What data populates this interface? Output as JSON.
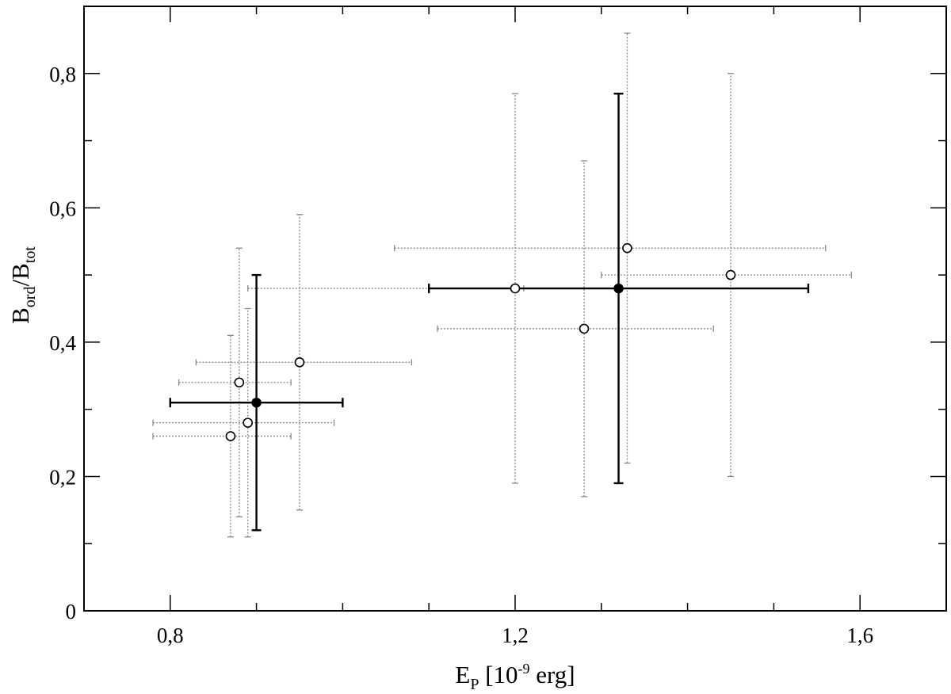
{
  "chart_data": {
    "type": "scatter",
    "title": "",
    "xlabel": {
      "main": "E",
      "sub": "P",
      "pre": " [10",
      "sup": "-9",
      "post": " erg]"
    },
    "ylabel": {
      "b1": "B",
      "s1": "ord",
      "mid": "/B",
      "s2": "tot"
    },
    "xlim": [
      0.7,
      1.7
    ],
    "ylim": [
      0,
      0.9
    ],
    "x_ticks": [
      {
        "value": 0.8,
        "label": "0,8"
      },
      {
        "value": 1.2,
        "label": "1,2"
      },
      {
        "value": 1.6,
        "label": "1,6"
      }
    ],
    "y_ticks": [
      {
        "value": 0,
        "label": "0"
      },
      {
        "value": 0.2,
        "label": "0,2"
      },
      {
        "value": 0.4,
        "label": "0,4"
      },
      {
        "value": 0.6,
        "label": "0,6"
      },
      {
        "value": 0.8,
        "label": "0,8"
      }
    ],
    "x_minor_step": 0.1,
    "y_minor_step": 0.1,
    "grid": false,
    "series": [
      {
        "marker": "open-circle",
        "errorbar_style": "dotted-gray",
        "points": [
          {
            "x": 0.87,
            "y": 0.26,
            "xerr": [
              0.78,
              0.94
            ],
            "yerr": [
              0.11,
              0.41
            ]
          },
          {
            "x": 0.88,
            "y": 0.34,
            "xerr": [
              0.81,
              0.94
            ],
            "yerr": [
              0.14,
              0.54
            ]
          },
          {
            "x": 0.89,
            "y": 0.28,
            "xerr": [
              0.78,
              0.99
            ],
            "yerr": [
              0.11,
              0.45
            ]
          },
          {
            "x": 0.95,
            "y": 0.37,
            "xerr": [
              0.83,
              1.08
            ],
            "yerr": [
              0.15,
              0.59
            ]
          },
          {
            "x": 1.2,
            "y": 0.48,
            "xerr": [
              0.89,
              1.21
            ],
            "yerr": [
              0.19,
              0.77
            ]
          },
          {
            "x": 1.28,
            "y": 0.42,
            "xerr": [
              1.11,
              1.43
            ],
            "yerr": [
              0.17,
              0.67
            ]
          },
          {
            "x": 1.33,
            "y": 0.54,
            "xerr": [
              1.06,
              1.56
            ],
            "yerr": [
              0.22,
              0.86
            ]
          },
          {
            "x": 1.45,
            "y": 0.5,
            "xerr": [
              1.3,
              1.59
            ],
            "yerr": [
              0.2,
              0.8
            ]
          }
        ]
      },
      {
        "marker": "filled-circle",
        "errorbar_style": "solid-black",
        "points": [
          {
            "x": 0.9,
            "y": 0.31,
            "xerr": [
              0.8,
              1.0
            ],
            "yerr": [
              0.12,
              0.5
            ]
          },
          {
            "x": 1.32,
            "y": 0.48,
            "xerr": [
              1.1,
              1.54
            ],
            "yerr": [
              0.19,
              0.77
            ]
          }
        ]
      }
    ]
  }
}
